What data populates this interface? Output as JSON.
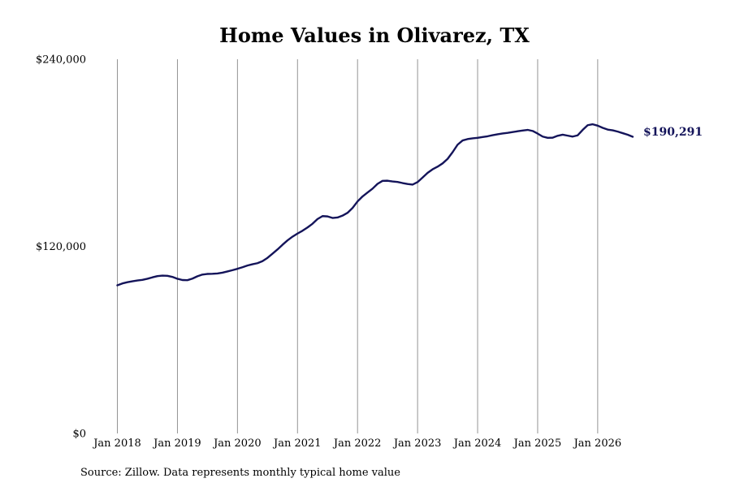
{
  "chart_data": {
    "type": "line",
    "title": "Home Values in Olivarez, TX",
    "xlabel": "",
    "ylabel": "",
    "ylim": [
      0,
      240000
    ],
    "y_ticks": [
      {
        "value": 0,
        "label": "$0"
      },
      {
        "value": 120000,
        "label": "$120,000"
      },
      {
        "value": 240000,
        "label": "$240,000"
      }
    ],
    "x_ticks": [
      {
        "date": "2018-01",
        "label": "Jan 2018"
      },
      {
        "date": "2019-01",
        "label": "Jan 2019"
      },
      {
        "date": "2020-01",
        "label": "Jan 2020"
      },
      {
        "date": "2021-01",
        "label": "Jan 2021"
      },
      {
        "date": "2022-01",
        "label": "Jan 2022"
      },
      {
        "date": "2023-01",
        "label": "Jan 2023"
      },
      {
        "date": "2024-01",
        "label": "Jan 2024"
      },
      {
        "date": "2025-01",
        "label": "Jan 2025"
      },
      {
        "date": "2026-01",
        "label": "Jan 2026"
      }
    ],
    "grid": {
      "vertical": true,
      "horyzontal": false
    },
    "line_color": "#14145a",
    "grid_color": "#888888",
    "end_label": "$190,291",
    "series": [
      {
        "x": [
          "2018-01",
          "2018-02",
          "2018-03",
          "2018-04",
          "2018-05",
          "2018-06",
          "2018-07",
          "2018-08",
          "2018-09",
          "2018-10",
          "2018-11",
          "2018-12",
          "2019-01",
          "2019-02",
          "2019-03",
          "2019-04",
          "2019-05",
          "2019-06",
          "2019-07",
          "2019-08",
          "2019-09",
          "2019-10",
          "2019-11",
          "2019-12",
          "2020-01",
          "2020-02",
          "2020-03",
          "2020-04",
          "2020-05",
          "2020-06",
          "2020-07",
          "2020-08",
          "2020-09",
          "2020-10",
          "2020-11",
          "2020-12",
          "2021-01",
          "2021-02",
          "2021-03",
          "2021-04",
          "2021-05",
          "2021-06",
          "2021-07",
          "2021-08",
          "2021-09",
          "2021-10",
          "2021-11",
          "2021-12",
          "2022-01",
          "2022-02",
          "2022-03",
          "2022-04",
          "2022-05",
          "2022-06",
          "2022-07",
          "2022-08",
          "2022-09",
          "2022-10",
          "2022-11",
          "2022-12",
          "2023-01",
          "2023-02",
          "2023-03",
          "2023-04",
          "2023-05",
          "2023-06",
          "2023-07",
          "2023-08",
          "2023-09",
          "2023-10",
          "2023-11",
          "2023-12",
          "2024-01",
          "2024-02",
          "2024-03",
          "2024-04",
          "2024-05",
          "2024-06",
          "2024-07",
          "2024-08",
          "2024-09",
          "2024-10",
          "2024-11",
          "2024-12",
          "2025-01",
          "2025-02",
          "2025-03",
          "2025-04",
          "2025-05",
          "2025-06",
          "2025-07",
          "2025-08",
          "2025-09",
          "2025-10",
          "2025-11",
          "2025-12",
          "2026-01",
          "2026-02",
          "2026-03",
          "2026-04",
          "2026-05",
          "2026-06",
          "2026-07",
          "2026-08"
        ],
        "y": [
          95000,
          96200,
          97000,
          97600,
          98100,
          98500,
          99200,
          100100,
          100900,
          101200,
          101100,
          100400,
          99200,
          98400,
          98300,
          99300,
          100800,
          101900,
          102300,
          102400,
          102600,
          103100,
          103900,
          104700,
          105600,
          106600,
          107700,
          108500,
          109200,
          110500,
          112600,
          115300,
          118000,
          121000,
          123800,
          126200,
          128200,
          130000,
          132100,
          134500,
          137500,
          139400,
          139200,
          138200,
          138500,
          139700,
          141500,
          144600,
          148800,
          152000,
          154500,
          157000,
          160100,
          162000,
          162100,
          161600,
          161300,
          160600,
          160000,
          159600,
          161200,
          164100,
          167100,
          169400,
          171100,
          173200,
          176100,
          180400,
          185200,
          187900,
          188800,
          189300,
          189600,
          190100,
          190600,
          191300,
          191900,
          192400,
          192800,
          193300,
          193800,
          194300,
          194700,
          194000,
          192300,
          190400,
          189600,
          189700,
          190900,
          191600,
          191000,
          190400,
          191200,
          194700,
          197700,
          198300,
          197400,
          196000,
          194900,
          194400,
          193600,
          192600,
          191600,
          190291
        ]
      }
    ]
  },
  "footer": {
    "source": "Source: Zillow. Data represents monthly typical home value"
  }
}
